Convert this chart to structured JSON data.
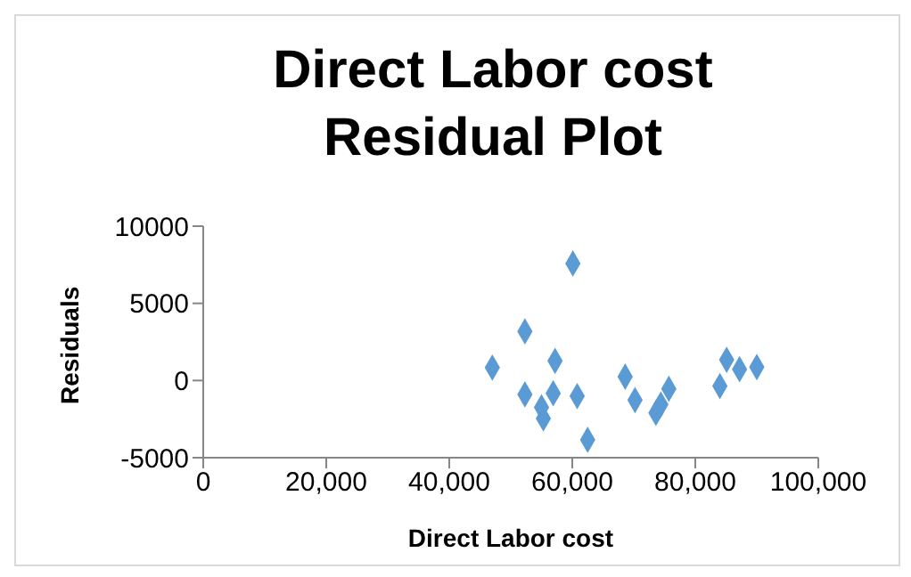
{
  "chart_data": {
    "type": "scatter",
    "title": "Direct Labor cost\nResidual Plot",
    "xlabel": "Direct Labor cost",
    "ylabel": "Residuals",
    "series": [
      {
        "color": "#5b9bd5",
        "x": [
          47000,
          52300,
          52300,
          55000,
          55300,
          57200,
          56900,
          60100,
          60800,
          62500,
          68600,
          70200,
          73600,
          74400,
          75700,
          84000,
          85100,
          87200,
          90000
        ],
        "values": [
          840,
          3180,
          -900,
          -1740,
          -2460,
          1270,
          -830,
          7580,
          -1010,
          -3840,
          250,
          -1270,
          -2100,
          -1560,
          -540,
          -360,
          1340,
          730,
          870
        ]
      }
    ],
    "xlim": [
      0,
      100000
    ],
    "xticks": [
      {
        "value": 0,
        "label": "0"
      },
      {
        "value": 20000,
        "label": "20,000"
      },
      {
        "value": 40000,
        "label": "40,000"
      },
      {
        "value": 60000,
        "label": "60,000"
      },
      {
        "value": 80000,
        "label": "80,000"
      },
      {
        "value": 100000,
        "label": "100,000"
      }
    ],
    "ylim": [
      -5000,
      10000
    ],
    "yticks": [
      -5000,
      0,
      5000,
      10000
    ],
    "grid": false,
    "legend": false,
    "marker": "diamond"
  }
}
